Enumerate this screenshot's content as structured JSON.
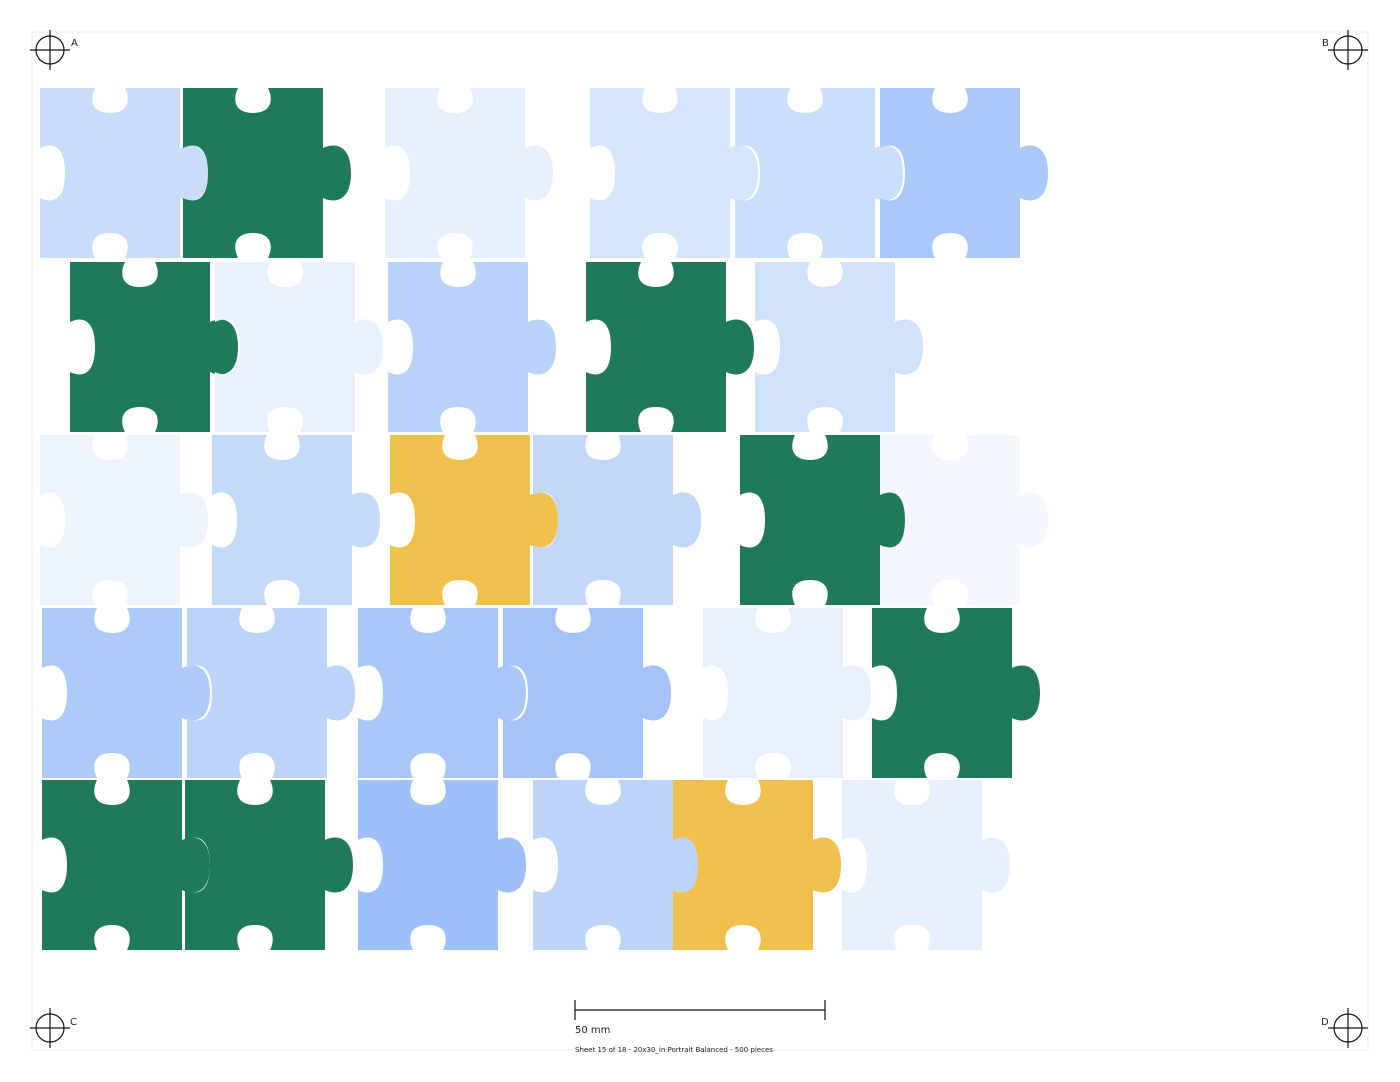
{
  "corners": {
    "top_left": "A",
    "top_right": "B",
    "bottom_left": "C",
    "bottom_right": "D"
  },
  "scale_bar": {
    "label": "50 mm"
  },
  "footer": "Sheet 15 of 18 - 20x30_in Portrait Balanced - 500 pieces"
}
